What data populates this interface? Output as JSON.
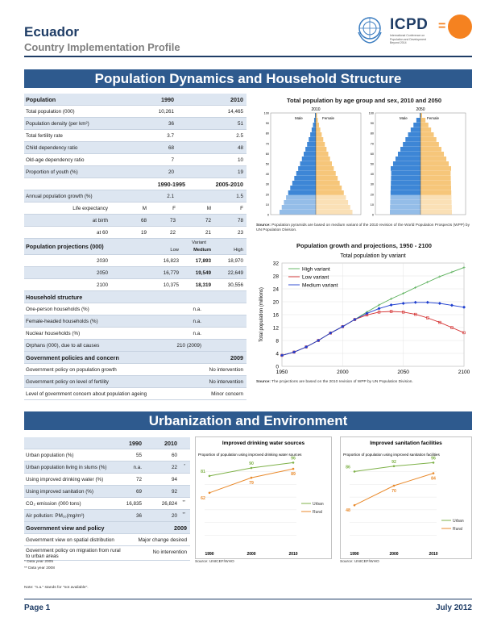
{
  "header": {
    "country": "Ecuador",
    "subtitle": "Country Implementation Profile",
    "logo_text": "ICPD",
    "logo_sub": "International Conference on Population and Development Beyond 2014",
    "logo_eq": "="
  },
  "section1": {
    "title": "Population Dynamics and Household Structure"
  },
  "population": {
    "heading": "Population",
    "years": [
      "1990",
      "2010"
    ],
    "rows": [
      {
        "label": "Total population (000)",
        "v1": "10,261",
        "v2": "14,465"
      },
      {
        "label": "Population density (per km²)",
        "v1": "36",
        "v2": "51"
      },
      {
        "label": "Total fertility rate",
        "v1": "3.7",
        "v2": "2.5"
      },
      {
        "label": "Child dependency ratio",
        "v1": "68",
        "v2": "48"
      },
      {
        "label": "Old-age dependency ratio",
        "v1": "7",
        "v2": "10"
      },
      {
        "label": "Proportion of youth (%)",
        "v1": "20",
        "v2": "19"
      }
    ],
    "periods": [
      "1990-1995",
      "2005-2010"
    ],
    "growth": {
      "label": "Annual population growth (%)",
      "v1": "2.1",
      "v2": "1.5"
    },
    "life_label": "Life expectancy",
    "life_cols": [
      "M",
      "F",
      "M",
      "F"
    ],
    "birth": {
      "label": "at birth",
      "vals": [
        "68",
        "73",
        "72",
        "78"
      ]
    },
    "age60": {
      "label": "at 60",
      "vals": [
        "19",
        "22",
        "21",
        "23"
      ]
    }
  },
  "projections": {
    "heading": "Population projections (000)",
    "variant_label": "Variant",
    "cols": [
      "Low",
      "Medium",
      "High"
    ],
    "rows": [
      {
        "year": "2030",
        "low": "16,823",
        "medium": "17,893",
        "high": "18,970"
      },
      {
        "year": "2050",
        "low": "16,779",
        "medium": "19,549",
        "high": "22,649"
      },
      {
        "year": "2100",
        "low": "10,375",
        "medium": "18,319",
        "high": "30,556"
      }
    ]
  },
  "household": {
    "heading": "Household structure",
    "rows": [
      {
        "label": "One-person households (%)",
        "value": "n.a."
      },
      {
        "label": "Female-headed households (%)",
        "value": "n.a."
      },
      {
        "label": "Nuclear households (%)",
        "value": "n.a."
      },
      {
        "label": "Orphans (000), due to all causes",
        "value": "210 (2009)"
      }
    ]
  },
  "policies": {
    "heading": "Government policies and concern",
    "year": "2009",
    "rows": [
      {
        "label": "Government policy on population growth",
        "value": "No intervention"
      },
      {
        "label": "Government policy on level of fertility",
        "value": "No intervention"
      },
      {
        "label": "Level of government concern about population ageing",
        "value": "Minor concern"
      }
    ]
  },
  "pyramid": {
    "title": "Total population by age group and sex, 2010 and 2050",
    "years": [
      "2010",
      "2050"
    ],
    "male_label": "Male",
    "female_label": "Female",
    "y_ticks": [
      "100",
      "90",
      "80",
      "70",
      "60",
      "50",
      "40",
      "30",
      "20",
      "10",
      "0"
    ],
    "male_color": "#3d86d6",
    "female_color": "#f6c67a",
    "source_bold": "Source:",
    "source": "Population pyramids are based on medium variant of the 2010 revision of the World Population Prospects (WPP) by UN Population Division."
  },
  "growth_chart": {
    "title": "Population growth and projections, 1950 - 2100",
    "source_bold": "Source:",
    "source": "The projections are based on the 2010 revision of WPP by UN Population Division."
  },
  "chart_data": [
    {
      "type": "line",
      "title": "Total population by variant",
      "ylabel": "Total population (millions)",
      "x": [
        1950,
        1960,
        1970,
        1980,
        1990,
        2000,
        2010,
        2020,
        2030,
        2040,
        2050,
        2060,
        2070,
        2080,
        2090,
        2100
      ],
      "ylim": [
        0,
        32
      ],
      "xlim": [
        1950,
        2100
      ],
      "y_ticks": [
        0,
        4,
        8,
        12,
        16,
        20,
        24,
        28,
        32
      ],
      "x_ticks": [
        1950,
        2000,
        2050,
        2100
      ],
      "legend": "top-left",
      "series": [
        {
          "name": "High variant",
          "color": "#5ab05a",
          "marker": "plus",
          "values": [
            3.4,
            4.4,
            6.0,
            8.0,
            10.3,
            12.3,
            14.5,
            16.8,
            19.0,
            20.9,
            22.6,
            24.4,
            26.1,
            27.8,
            29.2,
            30.6
          ]
        },
        {
          "name": "Low variant",
          "color": "#d42e2e",
          "marker": "square",
          "values": [
            3.4,
            4.4,
            6.0,
            8.0,
            10.3,
            12.3,
            14.5,
            15.9,
            16.8,
            17.0,
            16.8,
            16.1,
            15.0,
            13.6,
            12.0,
            10.4
          ]
        },
        {
          "name": "Medium variant",
          "color": "#1f3fcf",
          "marker": "diamond",
          "values": [
            3.4,
            4.4,
            6.0,
            8.0,
            10.3,
            12.3,
            14.5,
            16.4,
            17.9,
            19.0,
            19.5,
            19.8,
            19.8,
            19.5,
            18.9,
            18.3
          ]
        }
      ]
    },
    {
      "type": "line",
      "title": "Improved drinking water sources",
      "subtitle": "Proportion of population using improved drinking water sources",
      "x": [
        "1990",
        "2000",
        "2010"
      ],
      "ylim": [
        0,
        100
      ],
      "legend": "right",
      "series": [
        {
          "name": "Urban",
          "color": "#7fb24a",
          "values": [
            81,
            90,
            96
          ]
        },
        {
          "name": "Rural",
          "color": "#e98a2c",
          "values": [
            62,
            79,
            89
          ]
        }
      ]
    },
    {
      "type": "line",
      "title": "Improved sanitation facilities",
      "subtitle": "Proportion of population using improved sanitation facilities",
      "x": [
        "1990",
        "2000",
        "2010"
      ],
      "ylim": [
        0,
        100
      ],
      "legend": "bottom-right",
      "series": [
        {
          "name": "Urban",
          "color": "#7fb24a",
          "values": [
            86,
            92,
            96
          ]
        },
        {
          "name": "Rural",
          "color": "#e98a2c",
          "values": [
            48,
            70,
            84
          ]
        }
      ]
    }
  ],
  "section2": {
    "title": "Urbanization and Environment"
  },
  "urban": {
    "years": [
      "1990",
      "2010"
    ],
    "rows": [
      {
        "label": "Urban population (%)",
        "v1": "55",
        "v2": "60",
        "note": ""
      },
      {
        "label": "Urban population living in slums (%)",
        "v1": "n.a.",
        "v2": "22",
        "note": "*"
      },
      {
        "label": "Using improved drinking water (%)",
        "v1": "72",
        "v2": "94",
        "note": ""
      },
      {
        "label": "Using improved sanitation (%)",
        "v1": "69",
        "v2": "92",
        "note": ""
      },
      {
        "label": "CO₂ emission (000 tons)",
        "v1": "16,835",
        "v2": "26,824",
        "note": "**"
      },
      {
        "label": "Air pollution: PM₁₀(mg/m³)",
        "v1": "36",
        "v2": "20",
        "note": "**"
      }
    ],
    "gov_heading": "Government view and policy",
    "gov_year": "2009",
    "gov_rows": [
      {
        "label": "Government view on spatial distribution",
        "value": "Major change desired"
      },
      {
        "label": "Government policy on migration from rural to urban areas",
        "value": "No intervention"
      }
    ],
    "footnote1": "* Data year 2005",
    "footnote2": "** Data year 2008",
    "note": "Note: \"n.a.\" stands for \"not available\"."
  },
  "water_chart": {
    "source": "Source: UNICEF/WHO"
  },
  "sanitation_chart": {
    "source": "Source: UNICEF/WHO"
  },
  "footer": {
    "page": "Page 1",
    "date": "July 2012"
  }
}
